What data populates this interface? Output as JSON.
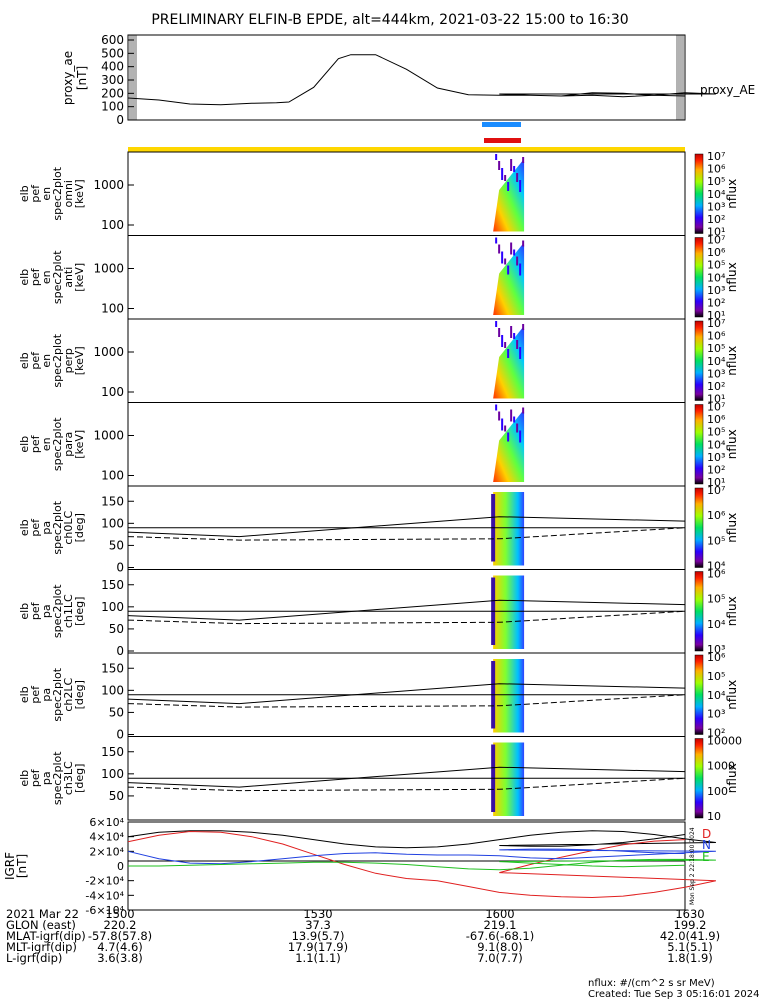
{
  "title": "PRELIMINARY ELFIN-B EPDE, alt=444km, 2021-03-22 15:00 to 16:30",
  "colors": {
    "blue_bar": "#1a8cff",
    "red_bar": "#e01010",
    "yellow_bar": "#ffd700",
    "bx": "#e02020",
    "by": "#2040e0",
    "bz": "#20c020"
  },
  "chart_data": [
    {
      "type": "line",
      "name": "proxy_ae",
      "ylabel": "proxy_ae [nT]",
      "legend": "proxy_AE",
      "ylim": [
        0,
        600
      ],
      "yticks": [
        "0",
        "100",
        "200",
        "300",
        "400",
        "500",
        "600"
      ],
      "x": [
        1500,
        1505,
        1510,
        1515,
        1520,
        1524,
        1526,
        1530,
        1534,
        1536,
        1540,
        1545,
        1550,
        1555,
        1560,
        1565,
        1570,
        1575,
        1580,
        1585,
        1590,
        1595,
        1600,
        1605,
        1610,
        1615,
        1620,
        1625,
        1630
      ],
      "values": [
        165,
        150,
        120,
        115,
        125,
        130,
        135,
        245,
        460,
        490,
        490,
        380,
        240,
        190,
        185,
        185,
        180,
        185,
        175,
        185,
        205,
        195,
        195,
        185,
        180,
        205,
        200,
        185,
        180
      ]
    },
    {
      "type": "heatmap",
      "panels": [
        {
          "ylabel": [
            "elb",
            "pef",
            "en",
            "spec2plot",
            "omni",
            "[keV]"
          ],
          "yticks": [
            "100",
            "1000"
          ],
          "cbar_label": "nflux",
          "cbar_ticks": [
            "10¹",
            "10²",
            "10³",
            "10⁴",
            "10⁵",
            "10⁶",
            "10⁷"
          ]
        },
        {
          "ylabel": [
            "elb",
            "pef",
            "en",
            "spec2plot",
            "anti",
            "[keV]"
          ],
          "yticks": [
            "100",
            "1000"
          ],
          "cbar_label": "nflux",
          "cbar_ticks": [
            "10¹",
            "10²",
            "10³",
            "10⁴",
            "10⁵",
            "10⁶",
            "10⁷"
          ]
        },
        {
          "ylabel": [
            "elb",
            "pef",
            "en",
            "spec2plot",
            "perp",
            "[keV]"
          ],
          "yticks": [
            "100",
            "1000"
          ],
          "cbar_label": "nflux",
          "cbar_ticks": [
            "10¹",
            "10²",
            "10³",
            "10⁴",
            "10⁵",
            "10⁶",
            "10⁷"
          ]
        },
        {
          "ylabel": [
            "elb",
            "pef",
            "en",
            "spec2plot",
            "para",
            "[keV]"
          ],
          "yticks": [
            "100",
            "1000"
          ],
          "cbar_label": "nflux",
          "cbar_ticks": [
            "10¹",
            "10²",
            "10³",
            "10⁴",
            "10⁵",
            "10⁶",
            "10⁷"
          ]
        },
        {
          "ylabel": [
            "elb",
            "pef",
            "pa",
            "spec2plot",
            "ch0LC",
            "[deg]"
          ],
          "yticks": [
            "0",
            "50",
            "100",
            "150"
          ],
          "cbar_label": "nflux",
          "cbar_ticks": [
            "10⁴",
            "10⁵",
            "10⁶",
            "10⁷"
          ]
        },
        {
          "ylabel": [
            "elb",
            "pef",
            "pa",
            "spec2plot",
            "ch1LC",
            "[deg]"
          ],
          "yticks": [
            "0",
            "50",
            "100",
            "150"
          ],
          "cbar_label": "nflux",
          "cbar_ticks": [
            "10³",
            "10⁴",
            "10⁵",
            "10⁶"
          ]
        },
        {
          "ylabel": [
            "elb",
            "pef",
            "pa",
            "spec2plot",
            "ch2LC",
            "[deg]"
          ],
          "yticks": [
            "0",
            "50",
            "100",
            "150"
          ],
          "cbar_label": "nflux",
          "cbar_ticks": [
            "10²",
            "10³",
            "10⁴",
            "10⁵",
            "10⁶"
          ]
        },
        {
          "ylabel": [
            "elb",
            "pef",
            "pa",
            "spec2plot",
            "ch3LC",
            "[deg]"
          ],
          "yticks": [
            "50",
            "100",
            "150"
          ],
          "cbar_label": "nflux",
          "cbar_ticks": [
            "10",
            "100",
            "1000",
            "10000"
          ]
        }
      ]
    },
    {
      "type": "line",
      "name": "IGRF",
      "ylabel": "IGRF [nT]",
      "ylim": [
        -60000,
        60000
      ],
      "yticks": [
        "-6×10⁴",
        "-4×10⁴",
        "-2×10⁴",
        "0",
        "2×10⁴",
        "4×10⁴",
        "6×10⁴"
      ],
      "legend": [
        "D",
        "N",
        "E"
      ],
      "side_text": "Mon Sep 2 22:18:00 2024",
      "x": [
        1500,
        1505,
        1510,
        1515,
        1520,
        1525,
        1530,
        1535,
        1540,
        1545,
        1550,
        1555,
        1560,
        1565,
        1570,
        1575,
        1580,
        1585,
        1590,
        1595,
        1600,
        1605,
        1610,
        1615,
        1620,
        1625,
        1630
      ],
      "series": [
        {
          "name": "black",
          "values": [
            40000,
            46000,
            48000,
            48000,
            46000,
            42000,
            36000,
            30000,
            26000,
            25000,
            26000,
            30000,
            36000,
            42000,
            46000,
            48000,
            47000,
            43000,
            37000,
            32000,
            28000,
            27000,
            27000,
            29000,
            32000,
            37000,
            43000
          ]
        },
        {
          "name": "D",
          "values": [
            33000,
            42000,
            47000,
            46000,
            40000,
            30000,
            16000,
            2000,
            -10000,
            -17000,
            -20000,
            -28000,
            -36000,
            -40000,
            -42000,
            -43000,
            -41000,
            -36000,
            -29000,
            -20000,
            -9000,
            2000,
            12000,
            21000,
            29000,
            34000,
            36000
          ]
        },
        {
          "name": "N",
          "values": [
            20000,
            10000,
            4000,
            3000,
            6000,
            10000,
            14000,
            17000,
            18000,
            16000,
            15000,
            15000,
            14000,
            11000,
            10000,
            12000,
            14000,
            16000,
            18000,
            20000,
            22000,
            23000,
            23000,
            22000,
            20000,
            18000,
            17000
          ]
        },
        {
          "name": "E",
          "values": [
            0,
            0,
            1000,
            2000,
            3000,
            4000,
            5000,
            5000,
            4000,
            2000,
            -1000,
            -4000,
            -5000,
            -3000,
            1000,
            5000,
            8000,
            9000,
            9000,
            8000,
            6000,
            4000,
            2000,
            0,
            -1000,
            0,
            1000
          ]
        }
      ]
    }
  ],
  "orbit_table": {
    "rows": [
      {
        "label": "2021 Mar 22",
        "vals": [
          "1500",
          "1530",
          "1600",
          "1630"
        ]
      },
      {
        "label": "GLON (east)",
        "vals": [
          "220.2",
          "37.3",
          "219.1",
          "199.2"
        ]
      },
      {
        "label": "MLAT-igrf(dip)",
        "vals": [
          "-57.8(57.8)",
          "13.9(5.7)",
          "-67.6(-68.1)",
          "42.0(41.9)"
        ]
      },
      {
        "label": "MLT-igrf(dip)",
        "vals": [
          "4.7(4.6)",
          "17.9(17.9)",
          "9.1(8.0)",
          "5.1(5.1)"
        ]
      },
      {
        "label": "L-igrf(dip)",
        "vals": [
          "3.6(3.8)",
          "1.1(1.1)",
          "7.0(7.7)",
          "1.8(1.9)"
        ]
      }
    ]
  },
  "footer": {
    "nflux": "nflux: #/(cm^2 s sr MeV)",
    "created": "Created: Tue Sep  3 05:16:01 2024"
  }
}
